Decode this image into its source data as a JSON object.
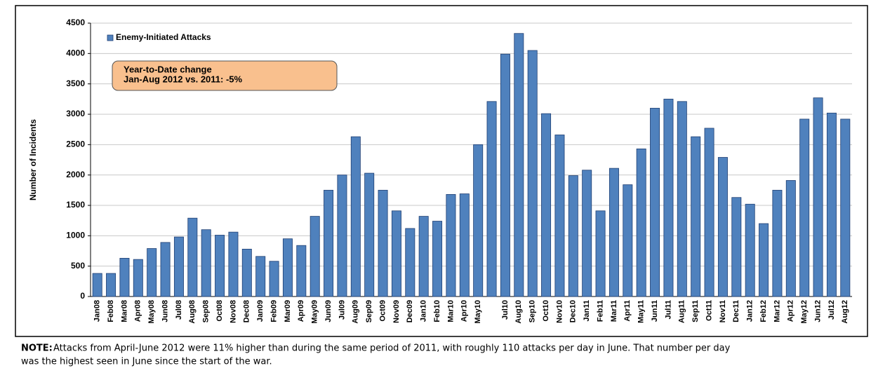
{
  "chart_data": {
    "type": "bar",
    "categories": [
      "Jan08",
      "Feb08",
      "Mar08",
      "Apr08",
      "May08",
      "Jun08",
      "Jul08",
      "Aug08",
      "Sep08",
      "Oct08",
      "Nov08",
      "Dec08",
      "Jan09",
      "Feb09",
      "Mar09",
      "Apr09",
      "May09",
      "Jun09",
      "Jul09",
      "Aug09",
      "Sep09",
      "Oct09",
      "Nov09",
      "Dec09",
      "Jan10",
      "Feb10",
      "Mar10",
      "Apr10",
      "May10",
      null,
      "Jul10",
      "Aug10",
      "Sep10",
      "Oct10",
      "Nov10",
      "Dec10",
      "Jan11",
      "Feb11",
      "Mar11",
      "Apr11",
      "May11",
      "Jun11",
      "Jul11",
      "Aug11",
      "Sep11",
      "Oct11",
      "Nov11",
      "Dec11",
      "Jan12",
      "Feb12",
      "Mar12",
      "Apr12",
      "May12",
      "Jun12",
      "Jul12",
      "Aug12"
    ],
    "series": [
      {
        "name": "Enemy-Initiated Attacks",
        "color": "#4f81bd",
        "values": [
          380,
          380,
          630,
          610,
          790,
          890,
          980,
          1290,
          1100,
          1010,
          1060,
          780,
          660,
          580,
          950,
          840,
          1320,
          1750,
          2000,
          2630,
          2030,
          1750,
          1410,
          1120,
          1320,
          1240,
          1680,
          1690,
          2500,
          3210,
          3990,
          4330,
          4050,
          3010,
          2660,
          1990,
          2080,
          1410,
          2110,
          1840,
          2430,
          3100,
          3250,
          3210,
          2630,
          2770,
          2290,
          1630,
          1520,
          1200,
          1750,
          1910,
          2920,
          3270,
          3020,
          2920
        ]
      }
    ],
    "y_label": "Number of Incidents",
    "ylim": [
      0,
      4500
    ],
    "yticks": [
      0,
      500,
      1000,
      1500,
      2000,
      2500,
      3000,
      3500,
      4000,
      4500
    ],
    "grid": true,
    "legend": "upper left",
    "annotation": {
      "lines": [
        "Year-to-Date change",
        "Jan-Aug 2012 vs. 2011:  -5%"
      ],
      "color": "#f9c08e"
    }
  },
  "note": {
    "label": "NOTE:",
    "lines": [
      "Attacks from April-June 2012 were 11% higher than during the same period of 2011, with roughly 110 attacks per day in June. That number per day",
      "was the highest seen in June since the start of the war."
    ]
  }
}
